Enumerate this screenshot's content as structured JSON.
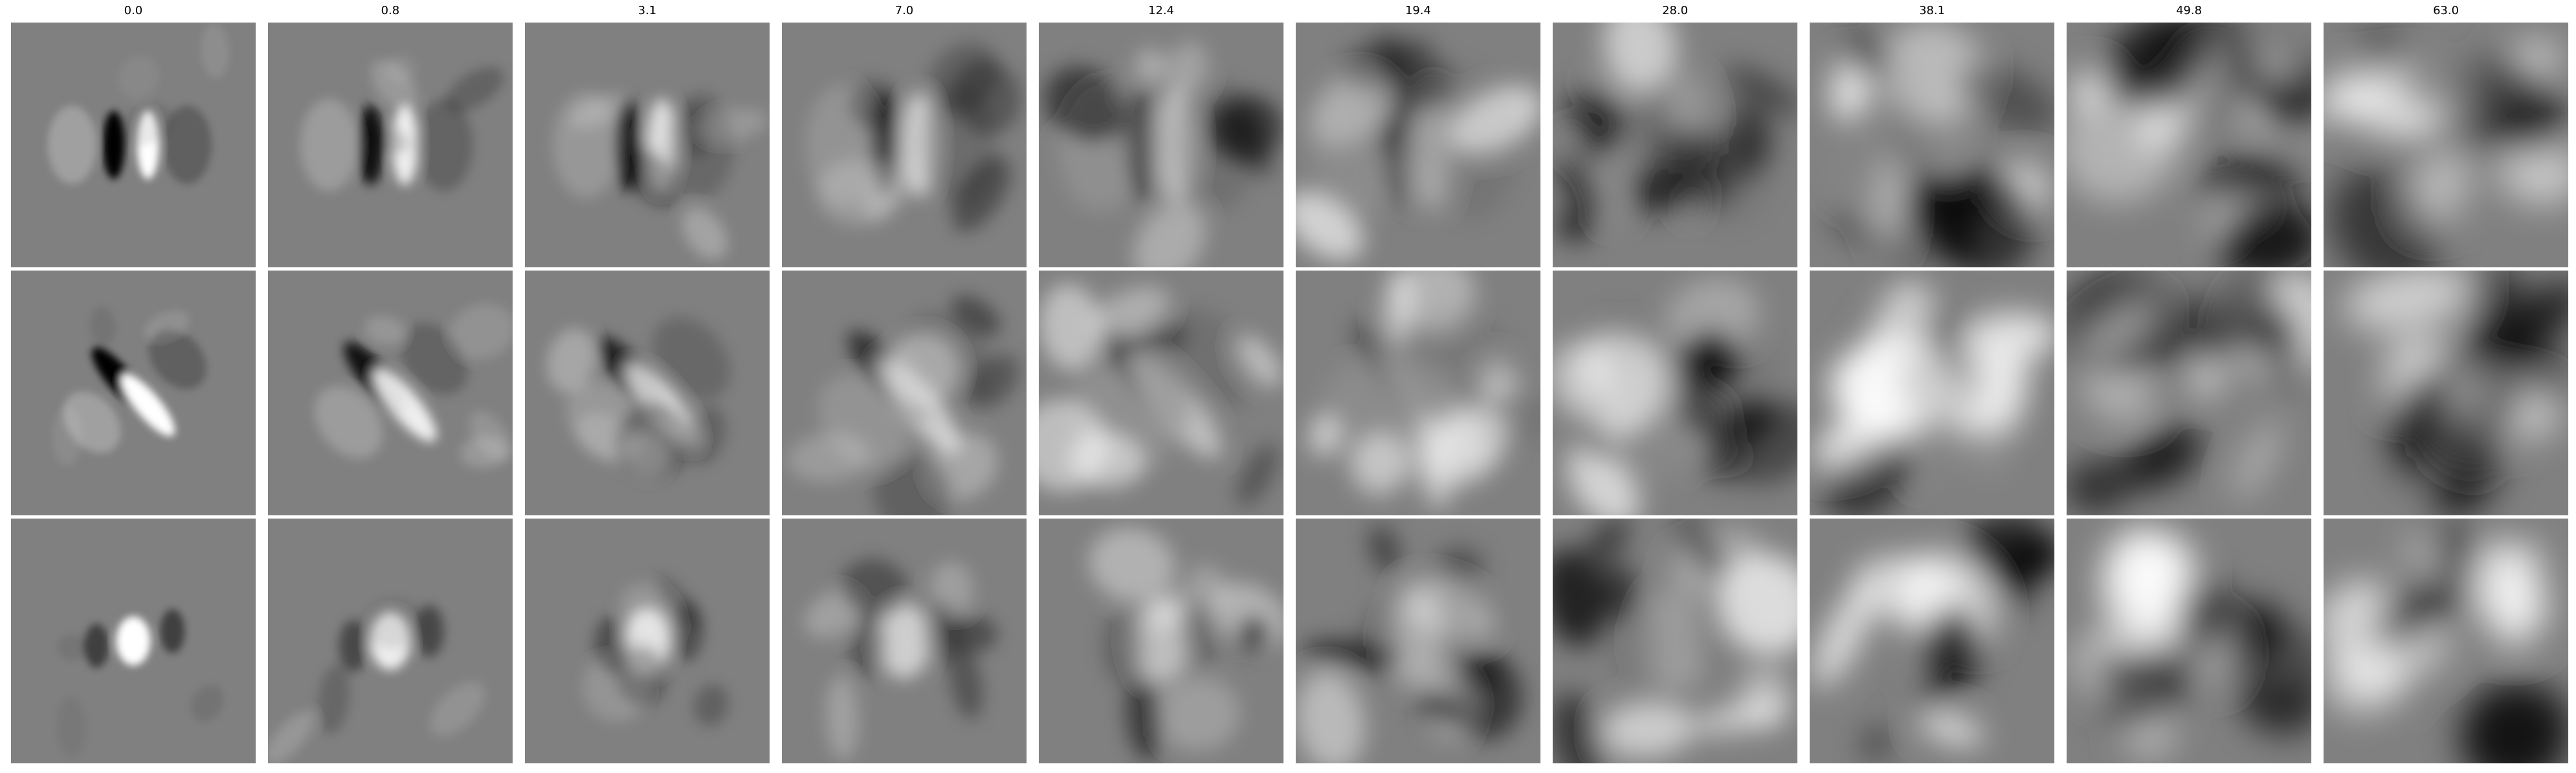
{
  "figure": {
    "columns": [
      {
        "title": "0.0"
      },
      {
        "title": "0.8"
      },
      {
        "title": "3.1"
      },
      {
        "title": "7.0"
      },
      {
        "title": "12.4"
      },
      {
        "title": "19.4"
      },
      {
        "title": "28.0"
      },
      {
        "title": "38.1"
      },
      {
        "title": "49.8"
      },
      {
        "title": "63.0"
      }
    ],
    "rows": 3,
    "colormap": "grayscale",
    "colors": {
      "background": "#808080",
      "separator": "#ffffff",
      "positive": "#ffffff",
      "negative": "#000000"
    }
  }
}
